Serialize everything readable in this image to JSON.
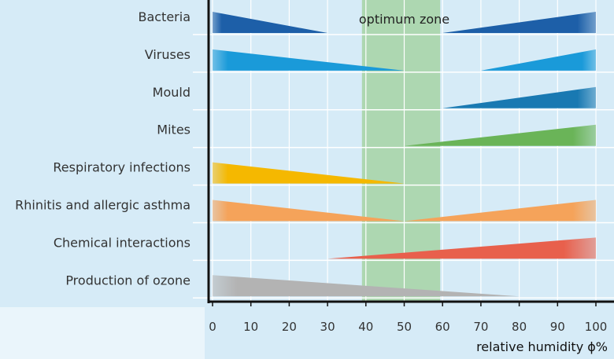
{
  "chart_data": {
    "type": "area",
    "xlabel": "relative humidity ϕ%",
    "xlim": [
      0,
      100
    ],
    "x_ticks": [
      "0",
      "10",
      "20",
      "30",
      "40",
      "50",
      "60",
      "70",
      "80",
      "90",
      "100"
    ],
    "optimum_zone": {
      "label": "optimum zone",
      "x_range": [
        40,
        60
      ],
      "color": "#a9d5a8"
    },
    "grid": true,
    "categories": [
      {
        "name": "Bacteria",
        "color": "#1d5fa8",
        "segments": [
          {
            "from": 0,
            "to": 30,
            "side": "left"
          },
          {
            "from": 60,
            "to": 100,
            "side": "right"
          }
        ]
      },
      {
        "name": "Viruses",
        "color": "#1a9ad9",
        "segments": [
          {
            "from": 0,
            "to": 50,
            "side": "left"
          },
          {
            "from": 70,
            "to": 100,
            "side": "right"
          }
        ]
      },
      {
        "name": "Mould",
        "color": "#1979b2",
        "segments": [
          {
            "from": 60,
            "to": 100,
            "side": "right"
          }
        ]
      },
      {
        "name": "Mites",
        "color": "#6ab458",
        "segments": [
          {
            "from": 50,
            "to": 100,
            "side": "right"
          }
        ]
      },
      {
        "name": "Respiratory infections",
        "color": "#f5b800",
        "segments": [
          {
            "from": 0,
            "to": 50,
            "side": "left"
          }
        ]
      },
      {
        "name": "Rhinitis and allergic asthma",
        "color": "#f5a35a",
        "segments": [
          {
            "from": 0,
            "to": 50,
            "side": "left"
          },
          {
            "from": 50,
            "to": 100,
            "side": "right"
          }
        ]
      },
      {
        "name": "Chemical interactions",
        "color": "#e8604c",
        "segments": [
          {
            "from": 30,
            "to": 100,
            "side": "right"
          }
        ]
      },
      {
        "name": "Production of ozone",
        "color": "#b3b3b3",
        "segments": [
          {
            "from": 0,
            "to": 80,
            "side": "left"
          }
        ]
      }
    ]
  }
}
